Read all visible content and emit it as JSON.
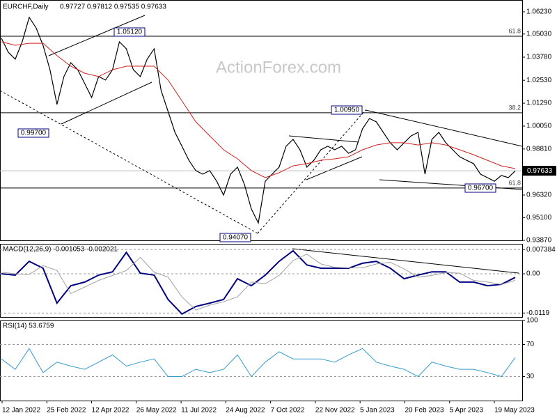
{
  "chart_data": {
    "type": "line",
    "title": "EURCHF,Daily",
    "ohlc_text": "0.97727 0.97812 0.97535 0.97633",
    "watermark": "ActionForex.com",
    "x_labels": [
      "12 Jan 2022",
      "25 Feb 2022",
      "12 Apr 2022",
      "26 May 2022",
      "11 Jul 2022",
      "24 Aug 2022",
      "7 Oct 2022",
      "22 Nov 2022",
      "5 Jan 2023",
      "20 Feb 2023",
      "5 Apr 2023",
      "19 May 2023"
    ],
    "price": {
      "ylim": [
        0.9387,
        1.0687
      ],
      "yticks": [
        {
          "value": 1.0623,
          "label": "1.06230"
        },
        {
          "value": 1.0503,
          "label": "1.05030"
        },
        {
          "value": 1.0378,
          "label": "1.03780"
        },
        {
          "value": 1.0253,
          "label": "1.02530"
        },
        {
          "value": 1.0129,
          "label": "1.01290"
        },
        {
          "value": 1.0005,
          "label": "1.00050"
        },
        {
          "value": 0.9881,
          "label": "0.98810"
        },
        {
          "value": 0.9632,
          "label": "0.96320"
        },
        {
          "value": 0.951,
          "label": "0.95100"
        },
        {
          "value": 0.9387,
          "label": "0.93870"
        }
      ],
      "last_price": {
        "value": 0.97633,
        "label": "0.97633"
      },
      "levels": [
        {
          "value": 1.0491,
          "label": "61.8"
        },
        {
          "value": 1.0077,
          "label": "38.2"
        },
        {
          "value": 0.967,
          "label": "61.8"
        }
      ],
      "annotations": [
        "1.05120",
        "0.99700",
        "0.94070",
        "1.00950",
        "0.96700"
      ],
      "series": [
        {
          "name": "EURCHF",
          "color": "#000000",
          "values": [
            1.048,
            1.0404,
            1.0367,
            1.0461,
            1.0593,
            1.0536,
            1.0442,
            1.031,
            1.0122,
            1.0273,
            1.0348,
            1.031,
            1.0235,
            1.016,
            1.0273,
            1.0254,
            1.031,
            1.0461,
            1.0423,
            1.031,
            1.0273,
            1.0367,
            1.0423,
            1.0197,
            1.0084,
            0.9971,
            0.9896,
            0.982,
            0.9764,
            0.9745,
            0.9764,
            0.9707,
            0.9632,
            0.9745,
            0.9783,
            0.9689,
            0.9557,
            0.9481,
            0.9707,
            0.9745,
            0.9783,
            0.9896,
            0.9933,
            0.9877,
            0.9783,
            0.982,
            0.9877,
            0.9896,
            0.9877,
            0.9896,
            0.9858,
            0.9877,
            0.999,
            1.0046,
            1.0028,
            0.9971,
            0.9915,
            0.9877,
            0.9915,
            0.9952,
            0.9971,
            0.9745,
            0.9933,
            0.9971,
            0.9915,
            0.9877,
            0.9839,
            0.982,
            0.9802,
            0.9745,
            0.9726,
            0.9707,
            0.9738,
            0.9726,
            0.9763
          ]
        },
        {
          "name": "MA",
          "color": "#d02020",
          "values": [
            1.0461,
            1.0442,
            1.0453,
            1.0453,
            1.0386,
            1.0329,
            1.0291,
            1.0273,
            1.031,
            1.0329,
            1.0329,
            1.0329,
            1.0254,
            1.0141,
            1.0028,
            0.9952,
            0.9877,
            0.9828,
            0.9764,
            0.9726,
            0.9753,
            0.979,
            0.9802,
            0.982,
            0.9828,
            0.9839,
            0.9877,
            0.9903,
            0.9915,
            0.9915,
            0.9903,
            0.9915,
            0.9903,
            0.9877,
            0.985,
            0.982,
            0.979,
            0.9775
          ]
        }
      ]
    },
    "macd": {
      "title": "MACD(12,26,9) -0.001053 -0.002021",
      "ylim": [
        -0.0131,
        0.0091
      ],
      "yticks": [
        0.007384,
        {
          "value": 0,
          "label": "0.00"
        },
        -0.0119
      ],
      "series": [
        {
          "name": "MACD",
          "color": "#000080",
          "values": [
            0,
            -0.0004,
            0.0038,
            0.0017,
            -0.0089,
            -0.0036,
            -0.0025,
            -0.0004,
            0.0006,
            0.0065,
            0.0002,
            -0.0004,
            -0.0078,
            -0.0122,
            -0.0099,
            -0.0089,
            -0.0078,
            -0.0015,
            -0.0036,
            -0.0004,
            0.0038,
            0.007,
            0.0027,
            0.0017,
            0.0017,
            0.0017,
            0.0032,
            0.0038,
            0.0017,
            -0.0015,
            -0.0004,
            0.0006,
            0.0006,
            -0.0025,
            -0.0025,
            -0.0036,
            -0.0032,
            -0.0011
          ]
        },
        {
          "name": "Signal",
          "color": "#a0a0a0",
          "values": [
            0.0005,
            0,
            -0.0002,
            0.0025,
            0.001,
            -0.006,
            -0.004,
            -0.002,
            -0.0005,
            0.001,
            0.005,
            0.0005,
            -0.001,
            -0.007,
            -0.011,
            -0.0095,
            -0.0085,
            -0.007,
            -0.0025,
            -0.003,
            -0.0005,
            0.004,
            0.006,
            0.003,
            0.002,
            0.0018,
            0.0018,
            0.003,
            0.0035,
            0.0015,
            -0.001,
            -0.0005,
            0.0004,
            0.0002,
            -0.002,
            -0.0025,
            -0.0032,
            -0.002
          ]
        }
      ]
    },
    "rsi": {
      "title": "RSI(14) 53.6759",
      "ylim": [
        0,
        100
      ],
      "yticks": [
        100,
        70,
        30
      ],
      "series": [
        {
          "name": "RSI",
          "color": "#3399cc",
          "values": [
            52,
            39,
            65,
            35,
            48,
            43,
            39,
            48,
            57,
            43,
            48,
            52,
            30,
            30,
            39,
            35,
            39,
            57,
            30,
            48,
            61,
            52,
            52,
            52,
            48,
            57,
            65,
            48,
            43,
            39,
            30,
            48,
            43,
            39,
            39,
            35,
            30,
            53.68
          ]
        }
      ]
    }
  }
}
